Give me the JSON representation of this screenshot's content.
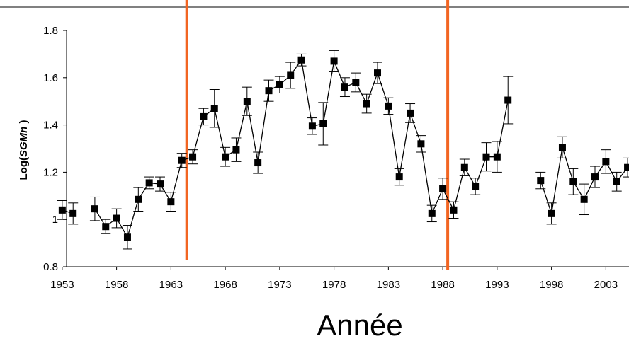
{
  "chart_data": {
    "type": "line",
    "title": "",
    "xlabel": "Année",
    "ylabel_prefix": "Log(",
    "ylabel_italic": "SGMn",
    "ylabel_suffix": " )",
    "xlim": [
      1953,
      2005
    ],
    "ylim": [
      0.8,
      1.8
    ],
    "x_ticks": [
      1953,
      1958,
      1963,
      1968,
      1973,
      1978,
      1983,
      1988,
      1993,
      1998,
      2003
    ],
    "x_tick_labels": [
      "1953",
      "1958",
      "1963",
      "1968",
      "1973",
      "1978",
      "1983",
      "1988",
      "1993",
      "1998",
      "2003"
    ],
    "y_ticks": [
      0.8,
      1.0,
      1.2,
      1.4,
      1.6,
      1.8
    ],
    "y_tick_labels": [
      "0.8",
      "1",
      "1.2",
      "1.4",
      "1.6",
      "1.8"
    ],
    "grid": false,
    "series": [
      {
        "segments": [
          [
            [
              1953,
              1.04,
              0.04
            ],
            [
              1954,
              1.025,
              0.045
            ]
          ],
          [
            [
              1956,
              1.045,
              0.05
            ],
            [
              1957,
              0.97,
              0.03
            ],
            [
              1958,
              1.005,
              0.04
            ],
            [
              1959,
              0.925,
              0.05
            ],
            [
              1960,
              1.085,
              0.05
            ],
            [
              1961,
              1.155,
              0.025
            ],
            [
              1962,
              1.15,
              0.03
            ],
            [
              1963,
              1.075,
              0.04
            ],
            [
              1964,
              1.25,
              0.03
            ],
            [
              1965,
              1.265,
              0.03
            ],
            [
              1966,
              1.435,
              0.035
            ],
            [
              1967,
              1.47,
              0.08
            ],
            [
              1968,
              1.265,
              0.04
            ],
            [
              1969,
              1.295,
              0.05
            ],
            [
              1970,
              1.5,
              0.06
            ],
            [
              1971,
              1.24,
              0.045
            ],
            [
              1972,
              1.545,
              0.045
            ],
            [
              1973,
              1.57,
              0.035
            ],
            [
              1974,
              1.61,
              0.055
            ],
            [
              1975,
              1.675,
              0.025
            ],
            [
              1976,
              1.395,
              0.035
            ],
            [
              1977,
              1.405,
              0.09
            ],
            [
              1978,
              1.67,
              0.045
            ],
            [
              1979,
              1.56,
              0.04
            ],
            [
              1980,
              1.58,
              0.04
            ],
            [
              1981,
              1.49,
              0.04
            ],
            [
              1982,
              1.62,
              0.045
            ],
            [
              1983,
              1.48,
              0.035
            ],
            [
              1984,
              1.18,
              0.035
            ],
            [
              1985,
              1.45,
              0.04
            ],
            [
              1986,
              1.32,
              0.035
            ],
            [
              1987,
              1.025,
              0.035
            ],
            [
              1988,
              1.13,
              0.045
            ],
            [
              1989,
              1.04,
              0.035
            ],
            [
              1990,
              1.22,
              0.035
            ],
            [
              1991,
              1.14,
              0.035
            ],
            [
              1992,
              1.265,
              0.06
            ],
            [
              1993,
              1.265,
              0.065
            ],
            [
              1994,
              1.505,
              0.1
            ]
          ],
          [
            [
              1997,
              1.165,
              0.035
            ],
            [
              1998,
              1.025,
              0.045
            ],
            [
              1999,
              1.305,
              0.045
            ],
            [
              2000,
              1.16,
              0.055
            ],
            [
              2001,
              1.085,
              0.065
            ],
            [
              2002,
              1.18,
              0.045
            ],
            [
              2003,
              1.245,
              0.05
            ],
            [
              2004,
              1.16,
              0.04
            ],
            [
              2005,
              1.22,
              0.04
            ]
          ]
        ]
      }
    ],
    "vertical_markers": [
      1964,
      1988
    ],
    "colors": {
      "series": "#000000",
      "markers": "#f26522",
      "axis": "#000000"
    }
  }
}
